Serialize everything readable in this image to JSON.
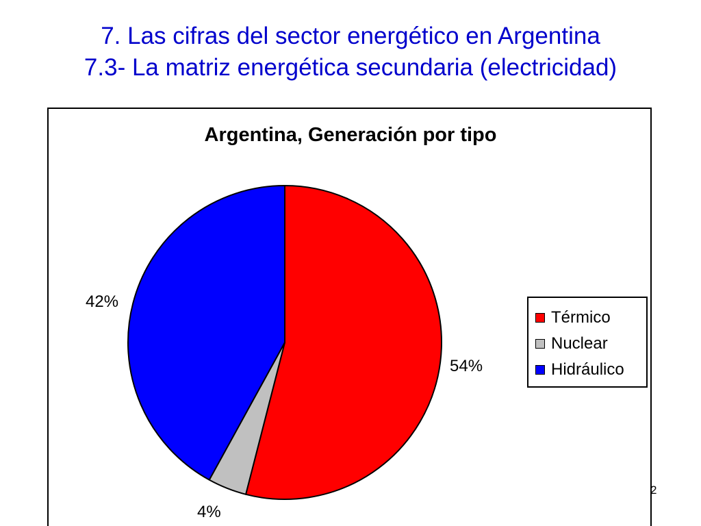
{
  "slide": {
    "title_line1": "7. Las cifras del sector energético en Argentina",
    "title_line2": "7.3- La matriz energética secundaria (electricidad)",
    "page_number": "2"
  },
  "chart_data": {
    "type": "pie",
    "title": "Argentina, Generación por tipo",
    "slices": [
      {
        "label": "Térmico",
        "value": 54,
        "display": "54%",
        "color": "#ff0000"
      },
      {
        "label": "Nuclear",
        "value": 4,
        "display": "4%",
        "color": "#c0c0c0"
      },
      {
        "label": "Hidráulico",
        "value": 42,
        "display": "42%",
        "color": "#0000ff"
      }
    ],
    "start_angle": "12 o'clock",
    "direction": "clockwise",
    "legend_position": "right"
  }
}
